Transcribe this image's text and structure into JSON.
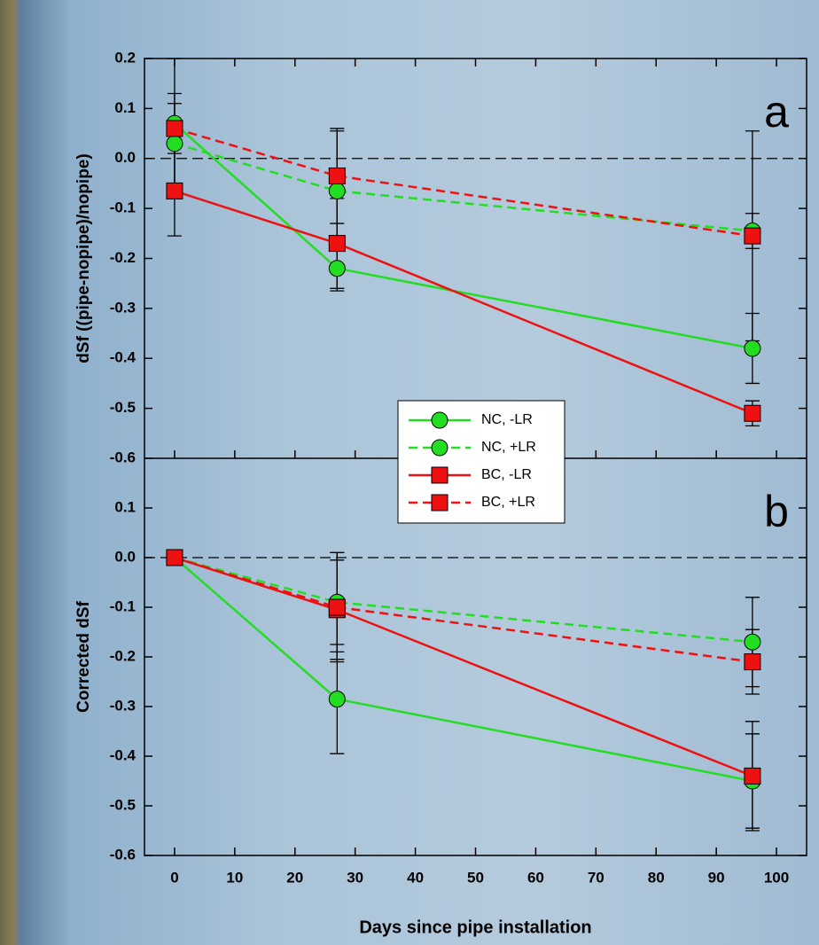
{
  "chart_data": [
    {
      "type": "line",
      "panel": "a",
      "ylabel": "dSf ((pipe-nopipe)/nopipe)",
      "x": [
        0,
        27,
        96
      ],
      "xlim": [
        -5,
        105
      ],
      "xticks": [
        0,
        10,
        20,
        30,
        40,
        50,
        60,
        70,
        80,
        90,
        100
      ],
      "ylim": [
        -0.6,
        0.2
      ],
      "yticks": [
        -0.6,
        -0.5,
        -0.4,
        -0.3,
        -0.2,
        -0.1,
        {
          "value": 0,
          "label": "0.0"
        },
        0.1,
        0.2
      ],
      "zero_line": true,
      "series": [
        {
          "name": "NC, -LR",
          "color": "#22dd22",
          "dashed": false,
          "marker": "circle",
          "values": [
            0.07,
            -0.22,
            -0.38
          ],
          "errors": [
            0.13,
            0.045,
            0.07
          ]
        },
        {
          "name": "NC, +LR",
          "color": "#22dd22",
          "dashed": true,
          "marker": "circle",
          "values": [
            0.03,
            -0.065,
            -0.145
          ],
          "errors": [
            0.1,
            0.12,
            0.035
          ]
        },
        {
          "name": "BC, -LR",
          "color": "#ee1111",
          "dashed": false,
          "marker": "square",
          "values": [
            -0.065,
            -0.17,
            -0.51
          ],
          "errors": [
            0.09,
            0.09,
            0.025
          ]
        },
        {
          "name": "BC, +LR",
          "color": "#ee1111",
          "dashed": true,
          "marker": "square",
          "values": [
            0.06,
            -0.035,
            -0.155
          ],
          "errors": [
            0.05,
            0.095,
            0.21
          ]
        }
      ]
    },
    {
      "type": "line",
      "panel": "b",
      "ylabel": "Corrected dSf",
      "xlabel": "Days since pipe installation",
      "x": [
        0,
        27,
        96
      ],
      "xlim": [
        -5,
        105
      ],
      "xticks": [
        0,
        10,
        20,
        30,
        40,
        50,
        60,
        70,
        80,
        90,
        100
      ],
      "ylim": [
        -0.6,
        0.2
      ],
      "yticks": [
        -0.6,
        -0.5,
        -0.4,
        -0.3,
        -0.2,
        -0.1,
        {
          "value": 0,
          "label": "0.0"
        },
        0.1
      ],
      "zero_line": true,
      "series": [
        {
          "color": "#22dd22",
          "dashed": false,
          "marker": "circle",
          "values": [
            0,
            -0.285,
            -0.45
          ],
          "errors": [
            0,
            0.11,
            0.095
          ]
        },
        {
          "color": "#22dd22",
          "dashed": true,
          "marker": "circle",
          "values": [
            0,
            -0.09,
            -0.17
          ],
          "errors": [
            0,
            0.1,
            0.09
          ]
        },
        {
          "color": "#ee1111",
          "dashed": false,
          "marker": "square",
          "values": [
            0,
            -0.105,
            -0.44
          ],
          "errors": [
            0,
            0.1,
            0.11
          ]
        },
        {
          "color": "#ee1111",
          "dashed": true,
          "marker": "square",
          "values": [
            0,
            -0.1,
            -0.21
          ],
          "errors": [
            0,
            0.11,
            0.065
          ]
        }
      ]
    }
  ]
}
